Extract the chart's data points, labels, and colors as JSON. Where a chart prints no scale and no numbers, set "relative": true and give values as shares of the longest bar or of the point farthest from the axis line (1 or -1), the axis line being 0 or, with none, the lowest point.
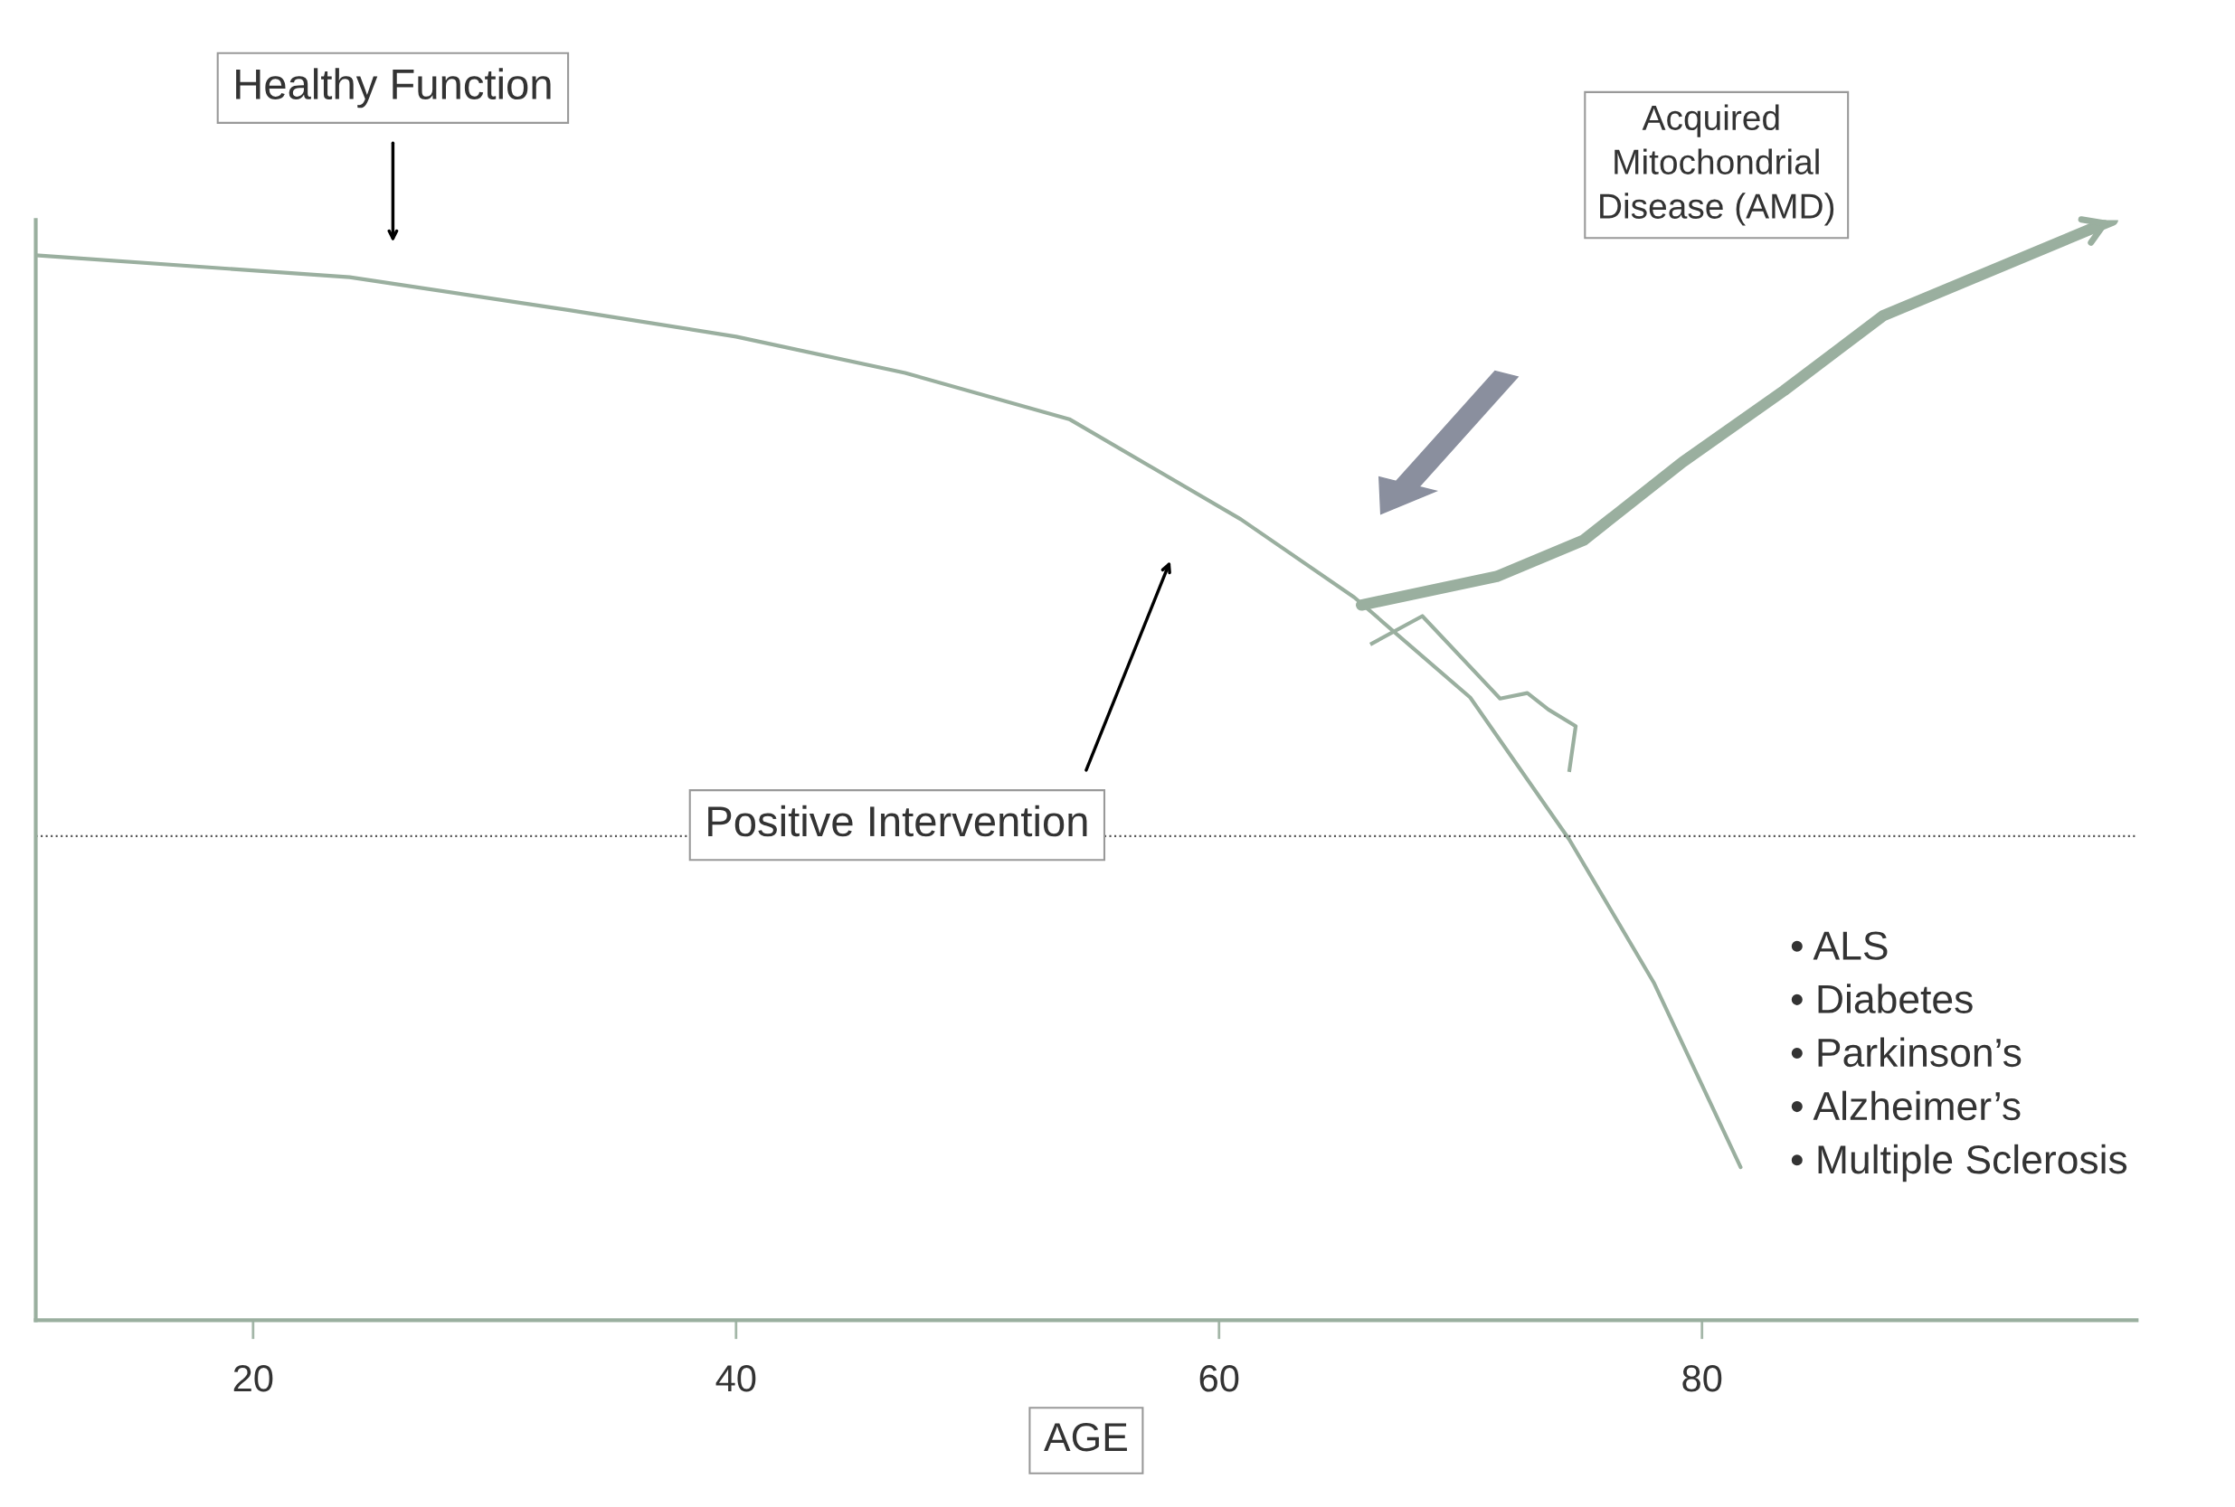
{
  "chart_data": {
    "type": "line",
    "relative": true,
    "xlabel": "AGE",
    "xlim": [
      11,
      98
    ],
    "xticks": [
      20,
      40,
      60,
      80
    ],
    "series": [
      {
        "color": "#9aaf9f",
        "x": [
          11,
          24,
          33.1,
          40,
          47,
          53.8,
          60.9,
          65.6,
          70.4,
          74.5,
          78,
          81.6
        ],
        "values": [
          0.968,
          0.948,
          0.918,
          0.894,
          0.861,
          0.819,
          0.728,
          0.657,
          0.566,
          0.437,
          0.307,
          0.139
        ]
      },
      {
        "color": "#9aaf9f",
        "x": [
          65.9,
          71.5,
          75.1,
          79.2,
          83.4,
          87.5,
          97
        ],
        "values": [
          0.65,
          0.676,
          0.709,
          0.78,
          0.845,
          0.913,
          1
        ]
      }
    ],
    "ref_lines": [
      {
        "axis": "y",
        "value": 0.44,
        "color": "#555555",
        "line_style": "dotted"
      }
    ],
    "annotations": [
      "Healthy Function",
      "Positive Intervention",
      "Acquired Mitochondrial Disease (AMD)",
      "• ALS\n• Diabetes\n• Parkinson’s\n• Alzheimer’s\n• Multiple Sclerosis"
    ],
    "grid": false
  }
}
